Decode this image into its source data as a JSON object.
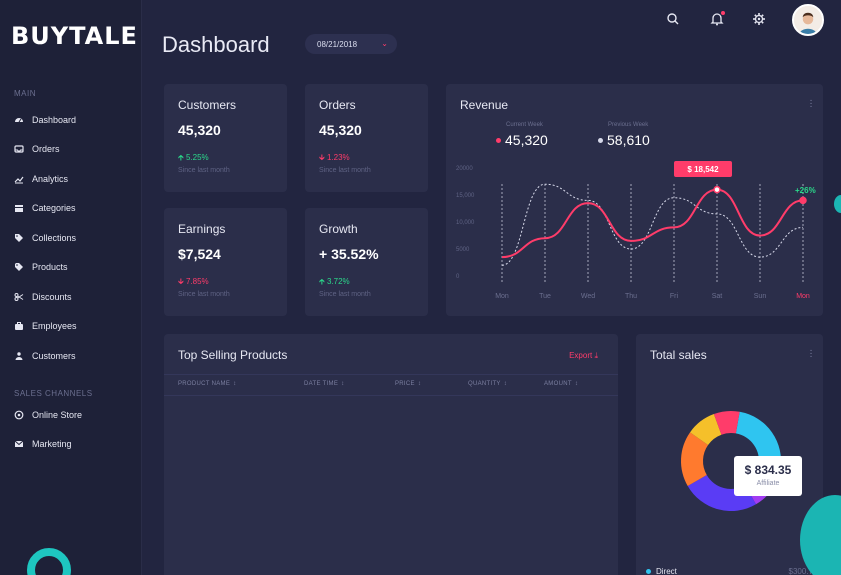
{
  "brand": {
    "name": "BUYTALE"
  },
  "sidebar": {
    "main_label": "MAIN",
    "items": [
      {
        "label": "Dashboard",
        "icon": "dashboard-icon"
      },
      {
        "label": "Orders",
        "icon": "inbox-icon"
      },
      {
        "label": "Analytics",
        "icon": "chart-line-icon"
      },
      {
        "label": "Categories",
        "icon": "calendar-icon"
      },
      {
        "label": "Collections",
        "icon": "tags-icon"
      },
      {
        "label": "Products",
        "icon": "tag-icon"
      },
      {
        "label": "Discounts",
        "icon": "scissors-icon"
      },
      {
        "label": "Employees",
        "icon": "briefcase-icon"
      },
      {
        "label": "Customers",
        "icon": "users-icon"
      }
    ],
    "channels_label": "SALES CHANNELS",
    "channels": [
      {
        "label": "Online Store",
        "icon": "store-icon"
      },
      {
        "label": "Marketing",
        "icon": "mail-icon"
      }
    ]
  },
  "header": {
    "title": "Dashboard",
    "date": "08/21/2018"
  },
  "stats": {
    "customers": {
      "title": "Customers",
      "value": "45,320",
      "change": "5.25%",
      "direction": "up",
      "sub": "Since last month"
    },
    "orders": {
      "title": "Orders",
      "value": "45,320",
      "change": "1.23%",
      "direction": "down",
      "sub": "Since last month"
    },
    "earnings": {
      "title": "Earnings",
      "value": "$7,524",
      "change": "7.85%",
      "direction": "down",
      "sub": "Since last month"
    },
    "growth": {
      "title": "Growth",
      "value": "+ 35.52%",
      "change": "3.72%",
      "direction": "up",
      "sub": "Since last month"
    }
  },
  "revenue": {
    "title": "Revenue",
    "current_label": "Current Week",
    "current_value": "45,320",
    "previous_label": "Previous Week",
    "previous_value": "58,610",
    "highlight": "$ 18,542",
    "trend": "+26%",
    "colors": {
      "current": "#ff3c6a",
      "previous": "#d7d9ea"
    }
  },
  "chart_data": {
    "type": "line",
    "x": [
      "Mon",
      "Tue",
      "Wed",
      "Thu",
      "Fri",
      "Sat",
      "Sun",
      "Mon"
    ],
    "y_ticks": [
      "20000",
      "15,000",
      "10,000",
      "5000",
      "0"
    ],
    "ylim": [
      0,
      20000
    ],
    "series": [
      {
        "values": [
          3500,
          7000,
          13500,
          6500,
          9000,
          16000,
          7500,
          14000
        ]
      },
      {
        "values": [
          2000,
          17000,
          14000,
          5000,
          14500,
          11500,
          3500,
          9000
        ]
      }
    ]
  },
  "products": {
    "title": "Top Selling Products",
    "export_label": "Export",
    "columns": [
      "PRODUCT NAME",
      "DATE TIME",
      "PRICE",
      "QUANTITY",
      "AMOUNT"
    ]
  },
  "sales": {
    "title": "Total sales",
    "tooltip_value": "$ 834.35",
    "tooltip_label": "Affiliate",
    "legend_label": "Direct",
    "legend_value": "$300.7",
    "segment_colors": [
      "#2fc5f0",
      "#a23cf2",
      "#5a3cf5",
      "#ff7a2e",
      "#f5c02a",
      "#ff3c6a"
    ]
  }
}
